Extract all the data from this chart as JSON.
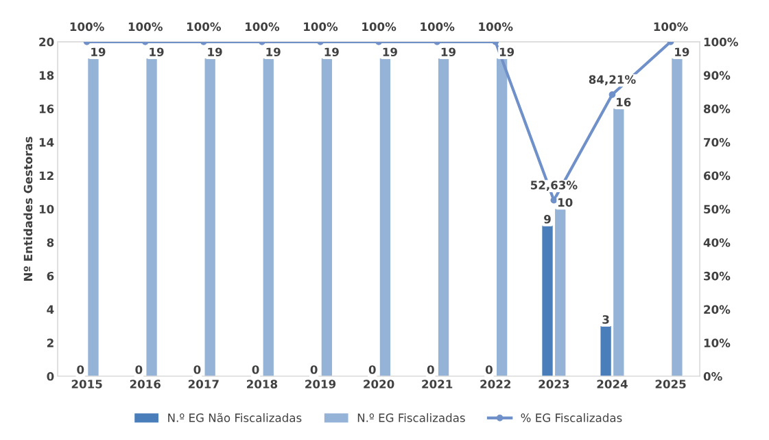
{
  "chart_data": {
    "type": "bar",
    "ylabel": "Nº Entidades Gestoras",
    "categories": [
      "2015",
      "2016",
      "2017",
      "2018",
      "2019",
      "2020",
      "2021",
      "2022",
      "2023",
      "2024",
      "2025"
    ],
    "series": [
      {
        "name": "N.º EG Não Fiscalizadas",
        "color": "#4a7ebb",
        "values": [
          0,
          0,
          0,
          0,
          0,
          0,
          0,
          0,
          9,
          3,
          null
        ],
        "value_labels": [
          "0",
          "0",
          "0",
          "0",
          "0",
          "0",
          "0",
          "0",
          "9",
          "3",
          null
        ]
      },
      {
        "name": "N.º EG Fiscalizadas",
        "color": "#95b3d7",
        "values": [
          19,
          19,
          19,
          19,
          19,
          19,
          19,
          19,
          10,
          16,
          19
        ],
        "value_labels": [
          "19",
          "19",
          "19",
          "19",
          "19",
          "19",
          "19",
          "19",
          "10",
          "16",
          "19"
        ]
      },
      {
        "name": "% EG Fiscalizadas",
        "type": "line",
        "axis": "y2",
        "marker": "circle",
        "color": "#6f90c8",
        "values": [
          100,
          100,
          100,
          100,
          100,
          100,
          100,
          100,
          52.63,
          84.21,
          100
        ],
        "value_labels": [
          "100%",
          "100%",
          "100%",
          "100%",
          "100%",
          "100%",
          "100%",
          "100%",
          "52,63%",
          "84,21%",
          "100%"
        ]
      }
    ],
    "ylim": [
      0,
      20
    ],
    "yticks": [
      0,
      2,
      4,
      6,
      8,
      10,
      12,
      14,
      16,
      18,
      20
    ],
    "y2lim": [
      0,
      100
    ],
    "y2ticks": [
      {
        "value": 0,
        "label": "0%"
      },
      {
        "value": 10,
        "label": "10%"
      },
      {
        "value": 20,
        "label": "20%"
      },
      {
        "value": 30,
        "label": "30%"
      },
      {
        "value": 40,
        "label": "40%"
      },
      {
        "value": 50,
        "label": "50%"
      },
      {
        "value": 60,
        "label": "60%"
      },
      {
        "value": 70,
        "label": "70%"
      },
      {
        "value": 80,
        "label": "80%"
      },
      {
        "value": 90,
        "label": "90%"
      },
      {
        "value": 100,
        "label": "100%"
      }
    ],
    "legend": "bottom",
    "grid": false
  }
}
